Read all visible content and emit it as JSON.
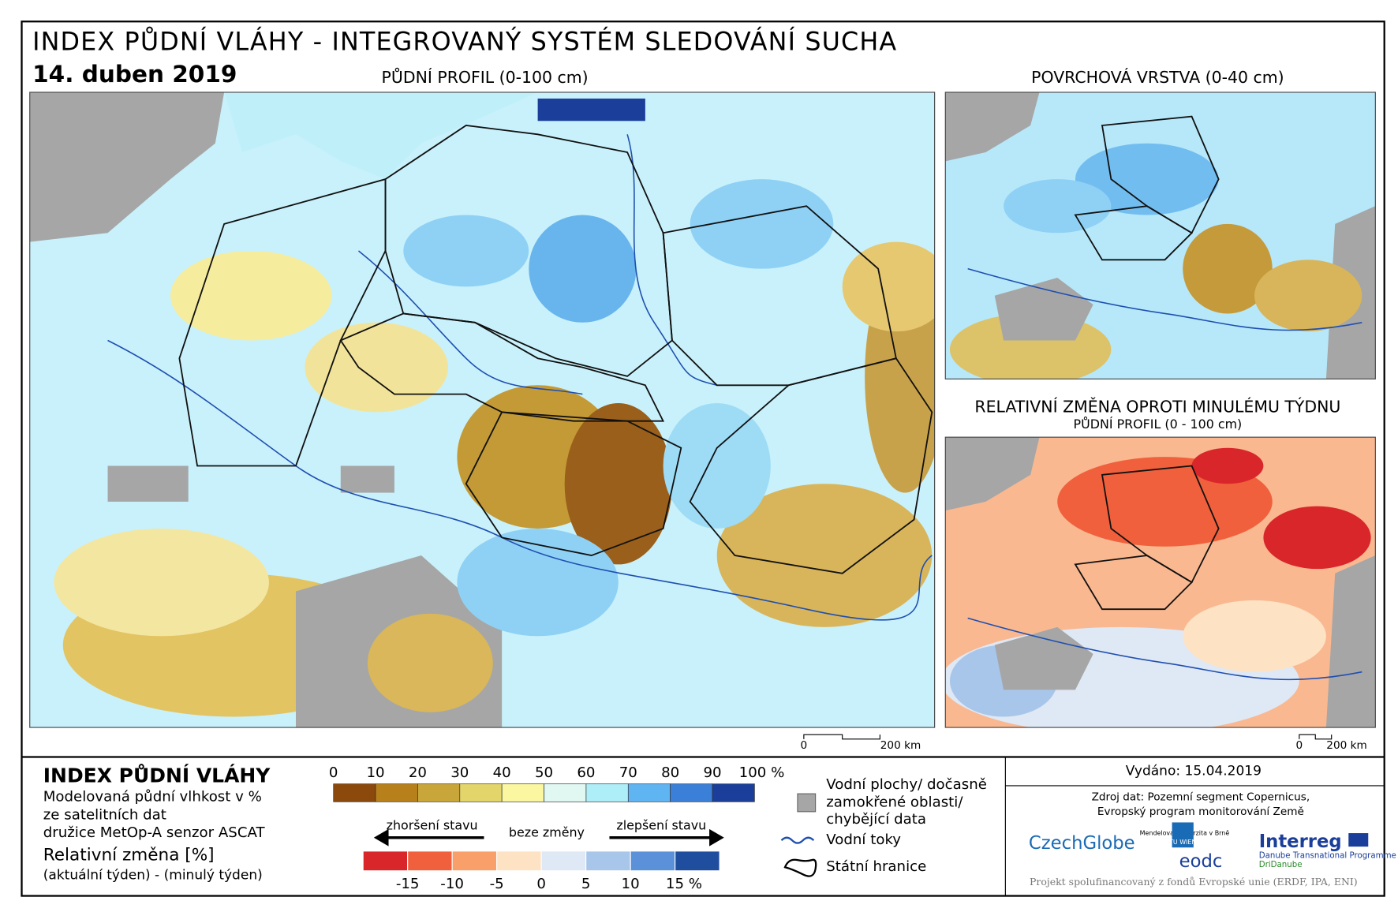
{
  "header": {
    "title": "INDEX PŮDNÍ VLÁHY - INTEGROVANÝ SYSTÉM SLEDOVÁNÍ SUCHA",
    "date": "14. duben 2019"
  },
  "maps": [
    {
      "title": "PŮDNÍ PROFIL (0-100 cm)"
    },
    {
      "title": "POVRCHOVÁ VRSTVA (0-40 cm)"
    },
    {
      "title": "RELATIVNÍ ZMĚNA OPROTI MINULÉMU TÝDNU",
      "subtitle": "PŮDNÍ PROFIL (0 - 100 cm)"
    }
  ],
  "scale_bars": [
    {
      "start": "0",
      "end": "200 km"
    },
    {
      "start": "0",
      "end": "200 km"
    }
  ],
  "legend": {
    "title": "INDEX PŮDNÍ VLÁHY",
    "description": [
      "Modelovaná půdní vlhkost v %",
      "ze satelitních dat",
      "družice MetOp-A senzor ASCAT"
    ],
    "moisture_scale": {
      "labels": [
        "0",
        "10",
        "20",
        "30",
        "40",
        "50",
        "60",
        "70",
        "80",
        "90",
        "100 %"
      ],
      "colors": [
        "#8b4a0c",
        "#b8801a",
        "#c9a63a",
        "#e3d56a",
        "#fbf7a0",
        "#e0f7f2",
        "#aeeef8",
        "#5fb4f2",
        "#3a7fd8",
        "#1a3e99"
      ]
    },
    "change_title": "Relativní změna [%]",
    "change_formula": "(aktuální týden) - (minulý týden)",
    "change_scale": {
      "worse": "zhoršení stavu",
      "none": "beze změny",
      "better": "zlepšení stavu",
      "labels": [
        "-15",
        "-10",
        "-5",
        "0",
        "5",
        "10",
        "15 %"
      ],
      "colors": [
        "#d9262a",
        "#f0603c",
        "#f9a06a",
        "#fde2c4",
        "#dfe8f5",
        "#a8c6ea",
        "#5a91d8",
        "#1f4e9e"
      ]
    },
    "symbols": {
      "missing": [
        "Vodní plochy/ dočasně",
        "zamokřené oblasti/",
        "chybějící data"
      ],
      "rivers": "Vodní toky",
      "borders": "Státní hranice"
    }
  },
  "info": {
    "issued": "Vydáno: 15.04.2019",
    "source": [
      "Zdroj dat: Pozemní segment Copernicus,",
      "Evropský program monitorování Země"
    ],
    "logos": {
      "czechglobe": "CzechGlobe",
      "mendel": "Mendelova univerzita v Brně",
      "tu": "TU WIEN",
      "eodc": "eodc",
      "interreg": "Interreg",
      "danube": "Danube Transnational Programme",
      "dridanube": "DriDanube"
    },
    "footer": "Projekt spolufinancovaný z fondů Evropské unie (ERDF, IPA, ENI)"
  }
}
